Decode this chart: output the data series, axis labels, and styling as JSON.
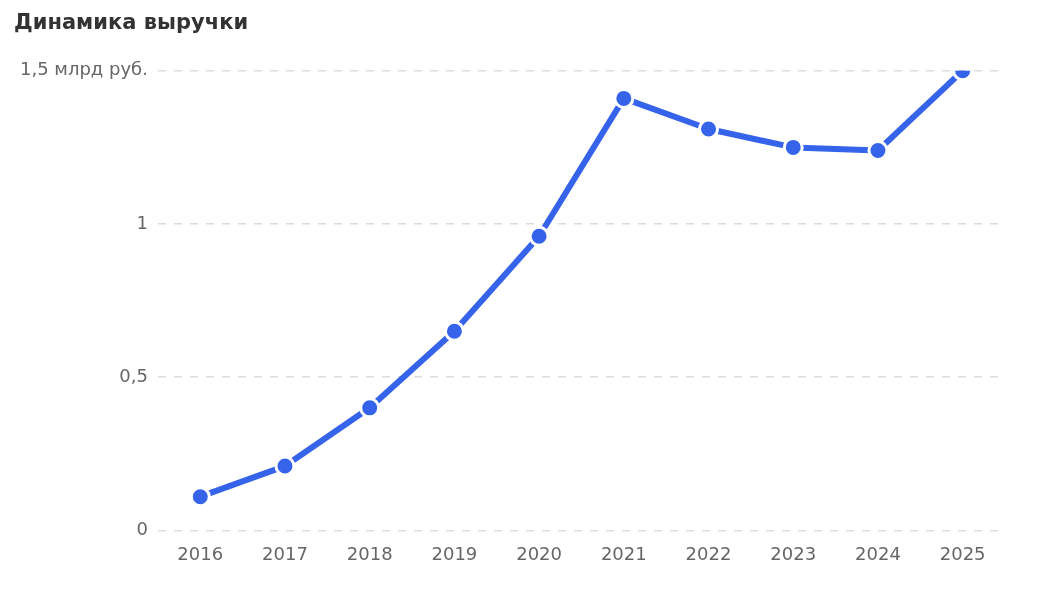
{
  "chart_data": {
    "type": "line",
    "title": "Динамика выручки",
    "categories": [
      "2016",
      "2017",
      "2018",
      "2019",
      "2020",
      "2021",
      "2022",
      "2023",
      "2024",
      "2025"
    ],
    "series": [
      {
        "color": "#3563e9",
        "values": [
          0.11,
          0.21,
          0.4,
          0.65,
          0.96,
          1.41,
          1.31,
          1.25,
          1.24,
          1.5
        ]
      }
    ],
    "ylim": [
      0,
      1.5
    ],
    "yticks": [
      0,
      {
        "value": 0.5,
        "label": "0,5"
      },
      1,
      {
        "value": 1.5,
        "label": "1,5 млрд руб."
      }
    ],
    "grid": "y",
    "legend": false,
    "marker": "circle",
    "line_style": "solid"
  }
}
